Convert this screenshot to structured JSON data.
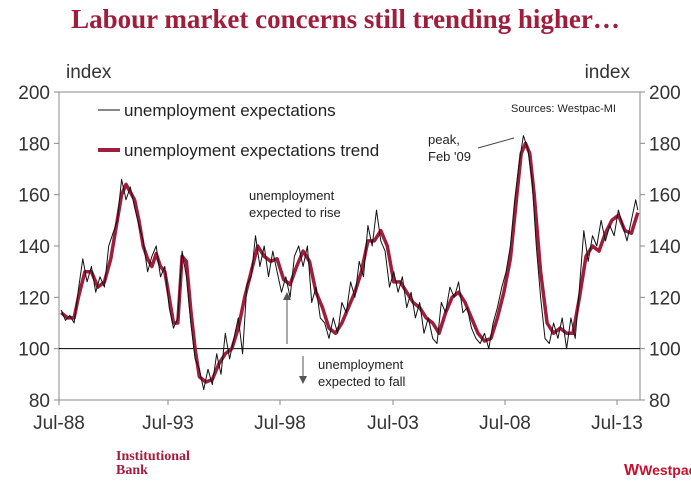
{
  "title": "Labour market concerns still trending higher…",
  "chart_data": {
    "type": "line",
    "y_axis_label_left": "index",
    "y_axis_label_right": "index",
    "ylim": [
      80,
      200
    ],
    "y_ticks": [
      80,
      100,
      120,
      140,
      160,
      180,
      200
    ],
    "xlim": [
      1988.5,
      2014.2
    ],
    "x_ticks": [
      {
        "value": 1988.5,
        "label": "Jul-88"
      },
      {
        "value": 1993.5,
        "label": "Jul-93"
      },
      {
        "value": 1998.5,
        "label": "Jul-98"
      },
      {
        "value": 2003.5,
        "label": "Jul-03"
      },
      {
        "value": 2008.5,
        "label": "Jul-08"
      },
      {
        "value": 2013.5,
        "label": "Jul-13"
      }
    ],
    "reference_line": 100,
    "source": "Sources: Westpac-MI",
    "legend": [
      "unemployment expectations",
      "unemployment expectations trend"
    ],
    "series": [
      {
        "name": "unemployment expectations trend",
        "color": "#a01d3b",
        "points": [
          [
            1988.6,
            114
          ],
          [
            1988.9,
            112
          ],
          [
            1989.2,
            112
          ],
          [
            1989.4,
            120
          ],
          [
            1989.7,
            130
          ],
          [
            1990.0,
            130
          ],
          [
            1990.3,
            124
          ],
          [
            1990.6,
            126
          ],
          [
            1990.9,
            135
          ],
          [
            1991.2,
            150
          ],
          [
            1991.4,
            160
          ],
          [
            1991.6,
            164
          ],
          [
            1991.8,
            161
          ],
          [
            1992.0,
            158
          ],
          [
            1992.2,
            150
          ],
          [
            1992.4,
            140
          ],
          [
            1992.6,
            135
          ],
          [
            1992.8,
            132
          ],
          [
            1993.0,
            137
          ],
          [
            1993.2,
            132
          ],
          [
            1993.4,
            130
          ],
          [
            1993.6,
            120
          ],
          [
            1993.8,
            110
          ],
          [
            1994.0,
            110
          ],
          [
            1994.2,
            136
          ],
          [
            1994.4,
            134
          ],
          [
            1994.6,
            115
          ],
          [
            1994.8,
            100
          ],
          [
            1995.0,
            89
          ],
          [
            1995.3,
            87
          ],
          [
            1995.6,
            88
          ],
          [
            1995.9,
            94
          ],
          [
            1996.2,
            98
          ],
          [
            1996.5,
            100
          ],
          [
            1996.8,
            108
          ],
          [
            1997.1,
            120
          ],
          [
            1997.4,
            130
          ],
          [
            1997.7,
            140
          ],
          [
            1998.0,
            136
          ],
          [
            1998.3,
            134
          ],
          [
            1998.6,
            135
          ],
          [
            1998.9,
            127
          ],
          [
            1999.2,
            125
          ],
          [
            1999.5,
            132
          ],
          [
            1999.8,
            138
          ],
          [
            2000.1,
            134
          ],
          [
            2000.4,
            122
          ],
          [
            2000.7,
            116
          ],
          [
            2001.0,
            108
          ],
          [
            2001.3,
            106
          ],
          [
            2001.6,
            110
          ],
          [
            2001.9,
            116
          ],
          [
            2002.2,
            122
          ],
          [
            2002.5,
            130
          ],
          [
            2002.8,
            142
          ],
          [
            2003.1,
            142
          ],
          [
            2003.4,
            146
          ],
          [
            2003.7,
            140
          ],
          [
            2004.0,
            126
          ],
          [
            2004.3,
            126
          ],
          [
            2004.6,
            122
          ],
          [
            2004.9,
            118
          ],
          [
            2005.2,
            116
          ],
          [
            2005.5,
            112
          ],
          [
            2005.8,
            110
          ],
          [
            2006.1,
            106
          ],
          [
            2006.4,
            114
          ],
          [
            2006.7,
            120
          ],
          [
            2007.0,
            122
          ],
          [
            2007.3,
            118
          ],
          [
            2007.6,
            112
          ],
          [
            2007.9,
            106
          ],
          [
            2008.2,
            103
          ],
          [
            2008.5,
            104
          ],
          [
            2008.8,
            112
          ],
          [
            2009.1,
            122
          ],
          [
            2009.4,
            135
          ],
          [
            2009.7,
            160
          ],
          [
            2009.9,
            176
          ],
          [
            2010.1,
            180
          ],
          [
            2010.3,
            176
          ],
          [
            2010.5,
            160
          ],
          [
            2010.8,
            130
          ],
          [
            2011.1,
            110
          ],
          [
            2011.4,
            106
          ],
          [
            2011.7,
            108
          ],
          [
            2012.0,
            106
          ],
          [
            2012.3,
            106
          ],
          [
            2012.6,
            120
          ],
          [
            2012.9,
            136
          ],
          [
            2013.2,
            140
          ],
          [
            2013.5,
            138
          ],
          [
            2013.8,
            145
          ],
          [
            2014.1,
            150
          ],
          [
            2014.4,
            152
          ],
          [
            2014.7,
            146
          ],
          [
            2015.0,
            145
          ],
          [
            2015.3,
            153
          ]
        ]
      },
      {
        "name": "unemployment expectations",
        "color": "#111111",
        "points": [
          [
            1988.6,
            115
          ],
          [
            1988.8,
            111
          ],
          [
            1989.0,
            113
          ],
          [
            1989.2,
            110
          ],
          [
            1989.4,
            123
          ],
          [
            1989.6,
            135
          ],
          [
            1989.8,
            126
          ],
          [
            1990.0,
            132
          ],
          [
            1990.2,
            122
          ],
          [
            1990.4,
            128
          ],
          [
            1990.6,
            124
          ],
          [
            1990.8,
            140
          ],
          [
            1991.0,
            145
          ],
          [
            1991.2,
            150
          ],
          [
            1991.4,
            166
          ],
          [
            1991.6,
            158
          ],
          [
            1991.8,
            163
          ],
          [
            1992.0,
            155
          ],
          [
            1992.2,
            148
          ],
          [
            1992.4,
            142
          ],
          [
            1992.6,
            130
          ],
          [
            1992.8,
            136
          ],
          [
            1993.0,
            140
          ],
          [
            1993.2,
            128
          ],
          [
            1993.4,
            132
          ],
          [
            1993.6,
            116
          ],
          [
            1993.8,
            108
          ],
          [
            1994.0,
            112
          ],
          [
            1994.2,
            138
          ],
          [
            1994.4,
            128
          ],
          [
            1994.6,
            110
          ],
          [
            1994.8,
            96
          ],
          [
            1995.0,
            92
          ],
          [
            1995.2,
            84
          ],
          [
            1995.4,
            92
          ],
          [
            1995.6,
            86
          ],
          [
            1995.8,
            98
          ],
          [
            1996.0,
            90
          ],
          [
            1996.2,
            106
          ],
          [
            1996.4,
            96
          ],
          [
            1996.6,
            104
          ],
          [
            1996.8,
            112
          ],
          [
            1997.0,
            98
          ],
          [
            1997.2,
            125
          ],
          [
            1997.4,
            128
          ],
          [
            1997.6,
            144
          ],
          [
            1997.8,
            132
          ],
          [
            1998.0,
            140
          ],
          [
            1998.2,
            128
          ],
          [
            1998.4,
            138
          ],
          [
            1998.6,
            130
          ],
          [
            1998.8,
            122
          ],
          [
            1999.0,
            128
          ],
          [
            1999.2,
            120
          ],
          [
            1999.4,
            136
          ],
          [
            1999.6,
            140
          ],
          [
            1999.8,
            132
          ],
          [
            2000.0,
            140
          ],
          [
            2000.2,
            118
          ],
          [
            2000.4,
            124
          ],
          [
            2000.6,
            112
          ],
          [
            2000.8,
            110
          ],
          [
            2001.0,
            104
          ],
          [
            2001.2,
            112
          ],
          [
            2001.4,
            106
          ],
          [
            2001.6,
            118
          ],
          [
            2001.8,
            114
          ],
          [
            2002.0,
            126
          ],
          [
            2002.2,
            120
          ],
          [
            2002.4,
            134
          ],
          [
            2002.6,
            128
          ],
          [
            2002.8,
            148
          ],
          [
            2003.0,
            140
          ],
          [
            2003.2,
            154
          ],
          [
            2003.4,
            142
          ],
          [
            2003.6,
            138
          ],
          [
            2003.8,
            124
          ],
          [
            2004.0,
            130
          ],
          [
            2004.2,
            122
          ],
          [
            2004.4,
            128
          ],
          [
            2004.6,
            116
          ],
          [
            2004.8,
            122
          ],
          [
            2005.0,
            112
          ],
          [
            2005.2,
            118
          ],
          [
            2005.4,
            106
          ],
          [
            2005.6,
            112
          ],
          [
            2005.8,
            104
          ],
          [
            2006.0,
            102
          ],
          [
            2006.2,
            118
          ],
          [
            2006.4,
            114
          ],
          [
            2006.6,
            124
          ],
          [
            2006.8,
            120
          ],
          [
            2007.0,
            126
          ],
          [
            2007.2,
            114
          ],
          [
            2007.4,
            116
          ],
          [
            2007.6,
            108
          ],
          [
            2007.8,
            104
          ],
          [
            2008.0,
            102
          ],
          [
            2008.2,
            106
          ],
          [
            2008.4,
            100
          ],
          [
            2008.6,
            110
          ],
          [
            2008.8,
            116
          ],
          [
            2009.0,
            124
          ],
          [
            2009.2,
            130
          ],
          [
            2009.4,
            140
          ],
          [
            2009.6,
            158
          ],
          [
            2009.8,
            172
          ],
          [
            2010.0,
            183
          ],
          [
            2010.2,
            178
          ],
          [
            2010.4,
            166
          ],
          [
            2010.6,
            140
          ],
          [
            2010.8,
            120
          ],
          [
            2011.0,
            104
          ],
          [
            2011.2,
            102
          ],
          [
            2011.4,
            110
          ],
          [
            2011.6,
            104
          ],
          [
            2011.8,
            112
          ],
          [
            2012.0,
            100
          ],
          [
            2012.2,
            112
          ],
          [
            2012.4,
            104
          ],
          [
            2012.6,
            124
          ],
          [
            2012.8,
            146
          ],
          [
            2013.0,
            134
          ],
          [
            2013.2,
            144
          ],
          [
            2013.4,
            140
          ],
          [
            2013.6,
            150
          ],
          [
            2013.8,
            142
          ],
          [
            2014.0,
            148
          ],
          [
            2014.2,
            144
          ],
          [
            2014.4,
            154
          ],
          [
            2014.6,
            148
          ],
          [
            2014.8,
            142
          ],
          [
            2015.0,
            150
          ],
          [
            2015.2,
            158
          ],
          [
            2015.3,
            154
          ]
        ]
      }
    ],
    "annotations": [
      {
        "id": "peak",
        "lines": [
          "peak,",
          "Feb '09"
        ]
      },
      {
        "id": "rise",
        "lines": [
          "unemployment",
          "expected to rise"
        ]
      },
      {
        "id": "fall",
        "lines": [
          "unemployment",
          "expected to fall"
        ]
      }
    ]
  },
  "footer": {
    "left_line1": "Institutional",
    "left_line2": "Bank",
    "right_brand": "Westpac",
    "right_mark": "W"
  },
  "colors": {
    "accent": "#a01d3b",
    "brand": "#c8102e"
  }
}
